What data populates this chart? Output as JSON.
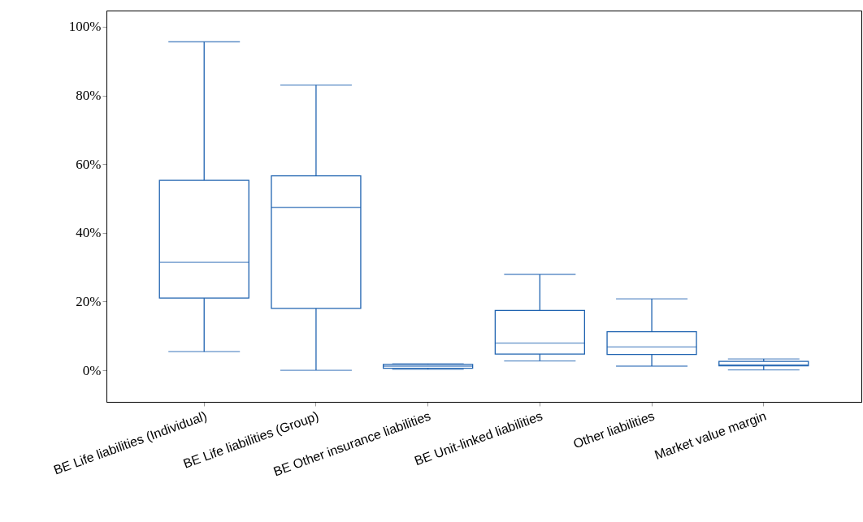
{
  "chart_data": {
    "type": "box",
    "categories": [
      "BE Life liabilities (Individual)",
      "BE Life liabilities (Group)",
      "BE Other insurance liabilities",
      "BE Unit-linked liabilities",
      "Other liabilities",
      "Market value margin"
    ],
    "boxes": [
      {
        "low": 5.4,
        "q1": 21.0,
        "median": 31.4,
        "q3": 55.3,
        "high": 95.6
      },
      {
        "low": 0,
        "q1": 18.0,
        "median": 47.4,
        "q3": 56.6,
        "high": 83.0
      },
      {
        "low": 0.3,
        "q1": 0.6,
        "median": 1.2,
        "q3": 1.7,
        "high": 1.9
      },
      {
        "low": 2.7,
        "q1": 4.7,
        "median": 7.9,
        "q3": 17.4,
        "high": 27.9
      },
      {
        "low": 1.2,
        "q1": 4.6,
        "median": 6.8,
        "q3": 11.2,
        "high": 20.8
      },
      {
        "low": 0.1,
        "q1": 1.3,
        "median": 1.6,
        "q3": 2.6,
        "high": 3.3
      }
    ],
    "color": "#1f63b0",
    "ylim": [
      -9.2,
      104.7
    ],
    "yticks": [
      {
        "value": 0,
        "label": "0%"
      },
      {
        "value": 20,
        "label": "20%"
      },
      {
        "value": 40,
        "label": "40%"
      },
      {
        "value": 60,
        "label": "60%"
      },
      {
        "value": 80,
        "label": "80%"
      },
      {
        "value": 100,
        "label": "100%"
      }
    ]
  }
}
